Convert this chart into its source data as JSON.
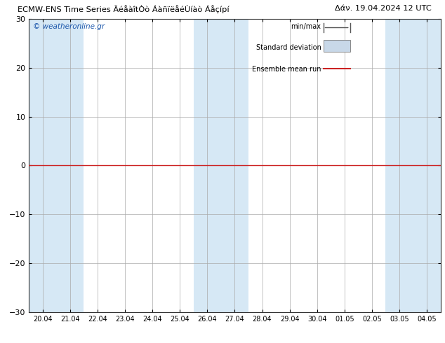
{
  "title_left": "ECMW-ENS Time Series ÄéåàîtÒò ÁàñïëåéÙíàò Áåçípí",
  "title_right": "Δάν. 19.04.2024 12 UTC",
  "ylim": [
    -30,
    30
  ],
  "yticks": [
    -30,
    -20,
    -10,
    0,
    10,
    20,
    30
  ],
  "x_labels": [
    "20.04",
    "21.04",
    "22.04",
    "23.04",
    "24.04",
    "25.04",
    "26.04",
    "27.04",
    "28.04",
    "29.04",
    "30.04",
    "01.05",
    "02.05",
    "03.05",
    "04.05"
  ],
  "n_points": 15,
  "bg_color": "#ffffff",
  "plot_bg_color": "#ffffff",
  "band_color": "#d6e8f5",
  "mean_color": "#cc2222",
  "watermark": "© weatheronline.gr",
  "watermark_color": "#1a55aa",
  "legend_minmax": "min/max",
  "legend_std": "Standard deviation",
  "legend_mean": "Ensemble mean run",
  "shaded_cols": [
    0,
    1,
    6,
    7,
    13,
    14
  ]
}
